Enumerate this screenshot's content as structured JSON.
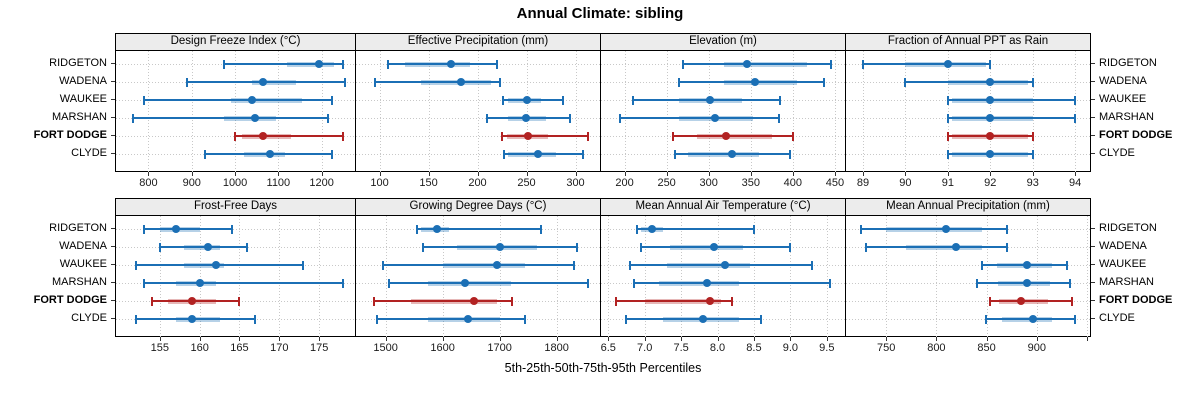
{
  "title": "Annual Climate: sibling",
  "xlabel": "5th-25th-50th-75th-95th Percentiles",
  "stations": [
    "RIDGETON",
    "WADENA",
    "WAUKEE",
    "MARSHAN",
    "FORT DODGE",
    "CLYDE"
  ],
  "highlight_station": "FORT DODGE",
  "percentiles": [
    "5th",
    "25th",
    "50th",
    "75th",
    "95th"
  ],
  "colors": {
    "series": "#1b6fb5",
    "series_band": "rgba(27,111,181,0.32)",
    "highlight": "#b22222",
    "highlight_band": "rgba(178,34,34,0.32)",
    "strip_bg": "#ececec",
    "panel_border": "#000000",
    "gridline": "#c8c8c8",
    "tick_text": "#1a1a1a"
  },
  "chart_data": {
    "type": "scatter",
    "subtype": "percentile-interval-dotplot",
    "layout": {
      "rows": 2,
      "cols": 4,
      "grid": "dotted",
      "station_labels": "both-sides",
      "legend": "none"
    },
    "panels": [
      {
        "title": "Design Freeze Index (°C)",
        "xlim": [
          725,
          1277
        ],
        "ticks": [
          {
            "v": 800,
            "label": "800"
          },
          {
            "v": 900,
            "label": "900"
          },
          {
            "v": 1000,
            "label": "1000"
          },
          {
            "v": 1100,
            "label": "1100"
          },
          {
            "v": 1200,
            "label": "1200"
          }
        ],
        "values": [
          [
            975,
            1120,
            1195,
            1228,
            1250
          ],
          [
            890,
            1040,
            1065,
            1140,
            1255
          ],
          [
            790,
            990,
            1040,
            1155,
            1225
          ],
          [
            765,
            975,
            1045,
            1095,
            1215
          ],
          [
            1000,
            1015,
            1065,
            1130,
            1250
          ],
          [
            930,
            1020,
            1080,
            1115,
            1225
          ]
        ]
      },
      {
        "title": "Effective Precipitation (mm)",
        "xlim": [
          76,
          325
        ],
        "ticks": [
          {
            "v": 100,
            "label": "100"
          },
          {
            "v": 150,
            "label": "150"
          },
          {
            "v": 200,
            "label": "200"
          },
          {
            "v": 250,
            "label": "250"
          },
          {
            "v": 300,
            "label": "300"
          }
        ],
        "values": [
          [
            109,
            126,
            173,
            192,
            220
          ],
          [
            95,
            142,
            183,
            214,
            223
          ],
          [
            226,
            231,
            250,
            265,
            287
          ],
          [
            210,
            231,
            249,
            270,
            294
          ],
          [
            225,
            230,
            252,
            272,
            313
          ],
          [
            227,
            231,
            262,
            280,
            308
          ]
        ]
      },
      {
        "title": "Elevation (m)",
        "xlim": [
          172,
          462
        ],
        "ticks": [
          {
            "v": 200,
            "label": "200"
          },
          {
            "v": 250,
            "label": "250"
          },
          {
            "v": 300,
            "label": "300"
          },
          {
            "v": 350,
            "label": "350"
          },
          {
            "v": 400,
            "label": "400"
          },
          {
            "v": 450,
            "label": "450"
          }
        ],
        "values": [
          [
            270,
            318,
            345,
            417,
            445
          ],
          [
            265,
            318,
            355,
            405,
            437
          ],
          [
            210,
            265,
            302,
            340,
            385
          ],
          [
            195,
            265,
            308,
            353,
            384
          ],
          [
            258,
            286,
            320,
            375,
            400
          ],
          [
            260,
            275,
            328,
            360,
            397
          ]
        ]
      },
      {
        "title": "Fraction of Annual PPT as Rain",
        "xlim": [
          88.6,
          94.35
        ],
        "ticks": [
          {
            "v": 89,
            "label": "89"
          },
          {
            "v": 90,
            "label": "90"
          },
          {
            "v": 91,
            "label": "91"
          },
          {
            "v": 92,
            "label": "92"
          },
          {
            "v": 93,
            "label": "93"
          },
          {
            "v": 94,
            "label": "94"
          }
        ],
        "values": [
          [
            89,
            90,
            91,
            91.9,
            92
          ],
          [
            90,
            91,
            92,
            92.9,
            93
          ],
          [
            91,
            91.1,
            92,
            93,
            94
          ],
          [
            91,
            91.1,
            92,
            93,
            94
          ],
          [
            91,
            91.1,
            92,
            92.9,
            93
          ],
          [
            91,
            91.1,
            92,
            92.9,
            93
          ]
        ]
      },
      {
        "title": "Frost-Free Days",
        "xlim": [
          149.5,
          179.5
        ],
        "ticks": [
          {
            "v": 155,
            "label": "155"
          },
          {
            "v": 160,
            "label": "160"
          },
          {
            "v": 165,
            "label": "165"
          },
          {
            "v": 170,
            "label": "170"
          },
          {
            "v": 175,
            "label": "175"
          }
        ],
        "values": [
          [
            153,
            155,
            157,
            160,
            164
          ],
          [
            155,
            158,
            161,
            162.5,
            166
          ],
          [
            152,
            158,
            162,
            163,
            173
          ],
          [
            153,
            157,
            160,
            162,
            178
          ],
          [
            154,
            156,
            159,
            162,
            165
          ],
          [
            152,
            157,
            159,
            162.5,
            167
          ]
        ]
      },
      {
        "title": "Growing Degree Days (°C)",
        "xlim": [
          1448,
          1876
        ],
        "ticks": [
          {
            "v": 1500,
            "label": "1500"
          },
          {
            "v": 1600,
            "label": "1600"
          },
          {
            "v": 1700,
            "label": "1700"
          },
          {
            "v": 1800,
            "label": "1800"
          }
        ],
        "values": [
          [
            1555,
            1562,
            1590,
            1612,
            1772
          ],
          [
            1565,
            1625,
            1700,
            1765,
            1835
          ],
          [
            1495,
            1600,
            1695,
            1745,
            1830
          ],
          [
            1505,
            1575,
            1640,
            1720,
            1855
          ],
          [
            1480,
            1545,
            1655,
            1695,
            1722
          ],
          [
            1485,
            1575,
            1645,
            1700,
            1745
          ]
        ]
      },
      {
        "title": "Mean Annual Air Temperature (°C)",
        "xlim": [
          6.4,
          9.75
        ],
        "ticks": [
          {
            "v": 6.5,
            "label": "6.5"
          },
          {
            "v": 7,
            "label": "7.0"
          },
          {
            "v": 7.5,
            "label": "7.5"
          },
          {
            "v": 8,
            "label": "8.0"
          },
          {
            "v": 8.5,
            "label": "8.5"
          },
          {
            "v": 9,
            "label": "9.0"
          },
          {
            "v": 9.5,
            "label": "9.5"
          }
        ],
        "values": [
          [
            6.9,
            6.95,
            7.1,
            7.25,
            8.5
          ],
          [
            6.95,
            7.35,
            7.95,
            8.35,
            9.0
          ],
          [
            6.8,
            7.3,
            8.1,
            8.45,
            9.3
          ],
          [
            6.85,
            7.2,
            7.85,
            8.3,
            9.55
          ],
          [
            6.6,
            7.0,
            7.9,
            8.05,
            8.2
          ],
          [
            6.75,
            7.25,
            7.8,
            8.3,
            8.6
          ]
        ]
      },
      {
        "title": "Mean Annual Precipitation (mm)",
        "xlim": [
          710,
          953
        ],
        "ticks": [
          {
            "v": 750,
            "label": "750"
          },
          {
            "v": 800,
            "label": "800"
          },
          {
            "v": 850,
            "label": "850"
          },
          {
            "v": 900,
            "label": "900"
          },
          {
            "v": 950,
            "label": ""
          }
        ],
        "values": [
          [
            725,
            750,
            810,
            845,
            870
          ],
          [
            730,
            770,
            820,
            845,
            870
          ],
          [
            845,
            860,
            890,
            915,
            930
          ],
          [
            840,
            861,
            890,
            913,
            933
          ],
          [
            853,
            862,
            884,
            911,
            935
          ],
          [
            849,
            865,
            896,
            915,
            938
          ]
        ]
      }
    ]
  }
}
